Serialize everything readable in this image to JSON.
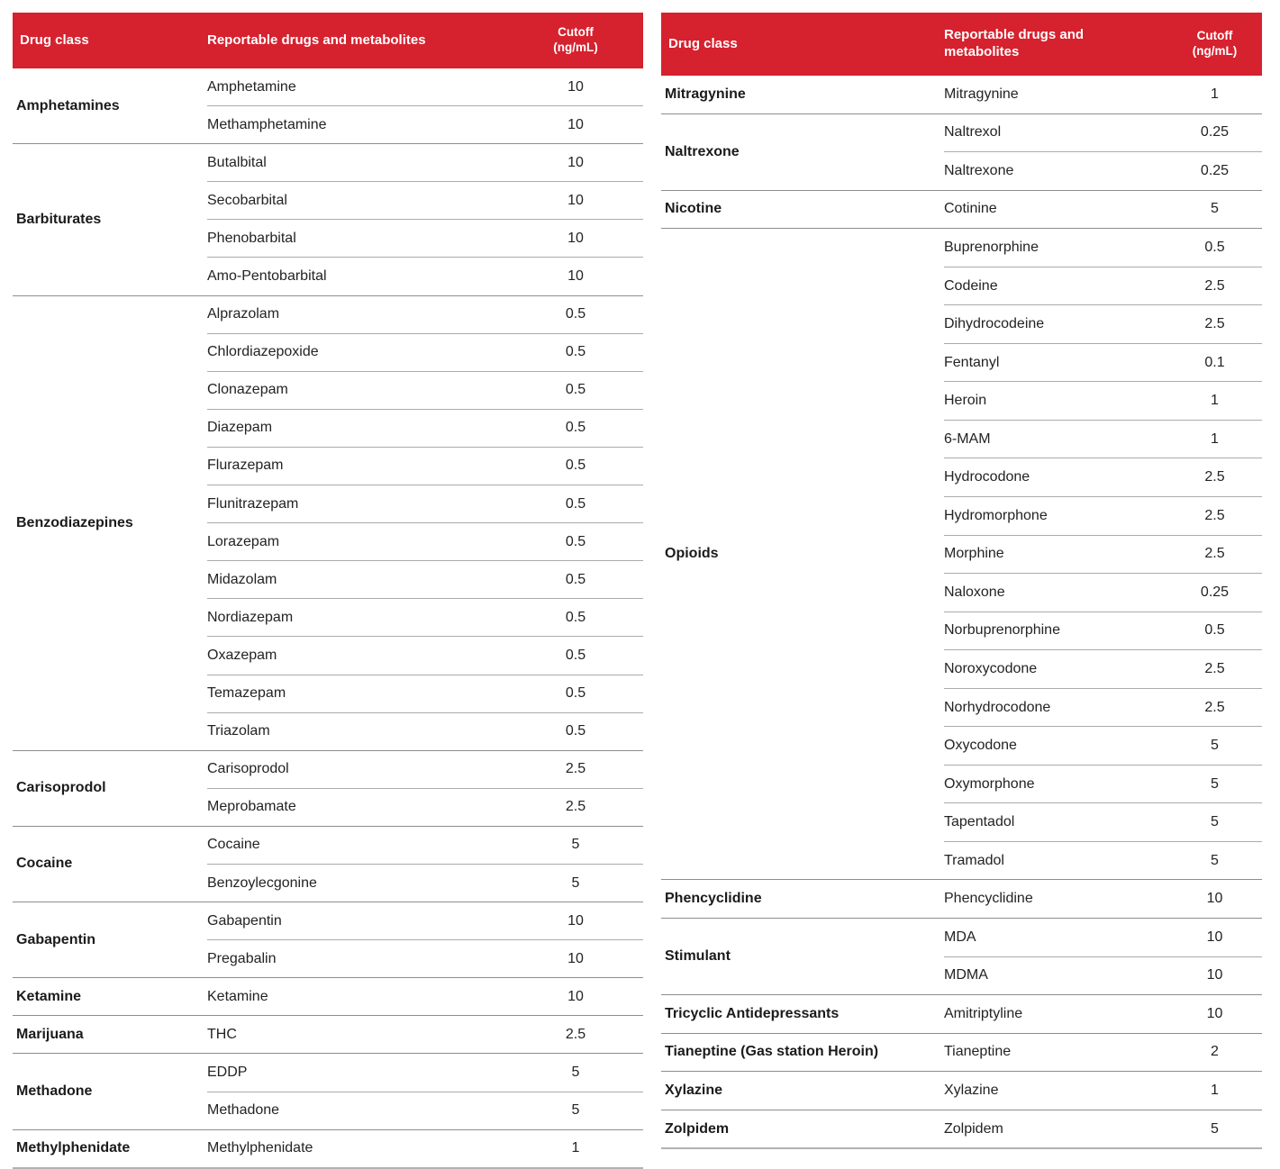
{
  "theme": {
    "header_bg": "#d6212e",
    "header_text": "#ffffff",
    "body_text": "#232323",
    "group_line": "#8d8d8d",
    "row_line": "#ababab",
    "table_bottom_line": "#b2b2b2"
  },
  "header_labels": {
    "drug_class": "Drug class",
    "reportable": "Reportable drugs and metabolites",
    "cutoff_line1": "Cutoff",
    "cutoff_line2": "(ng/mL)"
  },
  "left_table": {
    "groups": [
      {
        "drug_class": "Amphetamines",
        "rows": [
          {
            "drug": "Amphetamine",
            "cutoff": "10"
          },
          {
            "drug": "Methamphetamine",
            "cutoff": "10"
          }
        ]
      },
      {
        "drug_class": "Barbiturates",
        "rows": [
          {
            "drug": "Butalbital",
            "cutoff": "10"
          },
          {
            "drug": "Secobarbital",
            "cutoff": "10"
          },
          {
            "drug": "Phenobarbital",
            "cutoff": "10"
          },
          {
            "drug": "Amo-Pentobarbital",
            "cutoff": "10"
          }
        ]
      },
      {
        "drug_class": "Benzodiazepines",
        "rows": [
          {
            "drug": "Alprazolam",
            "cutoff": "0.5"
          },
          {
            "drug": "Chlordiazepoxide",
            "cutoff": "0.5"
          },
          {
            "drug": "Clonazepam",
            "cutoff": "0.5"
          },
          {
            "drug": "Diazepam",
            "cutoff": "0.5"
          },
          {
            "drug": "Flurazepam",
            "cutoff": "0.5"
          },
          {
            "drug": "Flunitrazepam",
            "cutoff": "0.5"
          },
          {
            "drug": "Lorazepam",
            "cutoff": "0.5"
          },
          {
            "drug": "Midazolam",
            "cutoff": "0.5"
          },
          {
            "drug": "Nordiazepam",
            "cutoff": "0.5"
          },
          {
            "drug": "Oxazepam",
            "cutoff": "0.5"
          },
          {
            "drug": "Temazepam",
            "cutoff": "0.5"
          },
          {
            "drug": "Triazolam",
            "cutoff": "0.5"
          }
        ]
      },
      {
        "drug_class": "Carisoprodol",
        "rows": [
          {
            "drug": "Carisoprodol",
            "cutoff": "2.5"
          },
          {
            "drug": "Meprobamate",
            "cutoff": "2.5"
          }
        ]
      },
      {
        "drug_class": "Cocaine",
        "rows": [
          {
            "drug": "Cocaine",
            "cutoff": "5"
          },
          {
            "drug": "Benzoylecgonine",
            "cutoff": "5"
          }
        ]
      },
      {
        "drug_class": "Gabapentin",
        "rows": [
          {
            "drug": "Gabapentin",
            "cutoff": "10"
          },
          {
            "drug": "Pregabalin",
            "cutoff": "10"
          }
        ]
      },
      {
        "drug_class": "Ketamine",
        "rows": [
          {
            "drug": "Ketamine",
            "cutoff": "10"
          }
        ]
      },
      {
        "drug_class": "Marijuana",
        "rows": [
          {
            "drug": "THC",
            "cutoff": "2.5"
          }
        ]
      },
      {
        "drug_class": "Methadone",
        "rows": [
          {
            "drug": "EDDP",
            "cutoff": "5"
          },
          {
            "drug": "Methadone",
            "cutoff": "5"
          }
        ]
      },
      {
        "drug_class": "Methylphenidate",
        "rows": [
          {
            "drug": "Methylphenidate",
            "cutoff": "1"
          }
        ]
      }
    ]
  },
  "right_table": {
    "groups": [
      {
        "drug_class": "Mitragynine",
        "rows": [
          {
            "drug": "Mitragynine",
            "cutoff": "1"
          }
        ]
      },
      {
        "drug_class": "Naltrexone",
        "rows": [
          {
            "drug": "Naltrexol",
            "cutoff": "0.25"
          },
          {
            "drug": "Naltrexone",
            "cutoff": "0.25"
          }
        ]
      },
      {
        "drug_class": "Nicotine",
        "rows": [
          {
            "drug": "Cotinine",
            "cutoff": "5"
          }
        ]
      },
      {
        "drug_class": "Opioids",
        "rows": [
          {
            "drug": "Buprenorphine",
            "cutoff": "0.5"
          },
          {
            "drug": "Codeine",
            "cutoff": "2.5"
          },
          {
            "drug": "Dihydrocodeine",
            "cutoff": "2.5"
          },
          {
            "drug": "Fentanyl",
            "cutoff": "0.1"
          },
          {
            "drug": "Heroin",
            "cutoff": "1"
          },
          {
            "drug": "6-MAM",
            "cutoff": "1"
          },
          {
            "drug": "Hydrocodone",
            "cutoff": "2.5"
          },
          {
            "drug": "Hydromorphone",
            "cutoff": "2.5"
          },
          {
            "drug": "Morphine",
            "cutoff": "2.5"
          },
          {
            "drug": "Naloxone",
            "cutoff": "0.25"
          },
          {
            "drug": "Norbuprenorphine",
            "cutoff": "0.5"
          },
          {
            "drug": "Noroxycodone",
            "cutoff": "2.5"
          },
          {
            "drug": "Norhydrocodone",
            "cutoff": "2.5"
          },
          {
            "drug": "Oxycodone",
            "cutoff": "5"
          },
          {
            "drug": "Oxymorphone",
            "cutoff": "5"
          },
          {
            "drug": "Tapentadol",
            "cutoff": "5"
          },
          {
            "drug": "Tramadol",
            "cutoff": "5"
          }
        ]
      },
      {
        "drug_class": "Phencyclidine",
        "rows": [
          {
            "drug": "Phencyclidine",
            "cutoff": "10"
          }
        ]
      },
      {
        "drug_class": "Stimulant",
        "rows": [
          {
            "drug": "MDA",
            "cutoff": "10"
          },
          {
            "drug": "MDMA",
            "cutoff": "10"
          }
        ]
      },
      {
        "drug_class": "Tricyclic Antidepressants",
        "rows": [
          {
            "drug": "Amitriptyline",
            "cutoff": "10"
          }
        ]
      },
      {
        "drug_class": "Tianeptine (Gas station Heroin)",
        "rows": [
          {
            "drug": "Tianeptine",
            "cutoff": "2"
          }
        ]
      },
      {
        "drug_class": "Xylazine",
        "rows": [
          {
            "drug": "Xylazine",
            "cutoff": "1"
          }
        ]
      },
      {
        "drug_class": "Zolpidem",
        "rows": [
          {
            "drug": "Zolpidem",
            "cutoff": "5"
          }
        ]
      }
    ]
  }
}
